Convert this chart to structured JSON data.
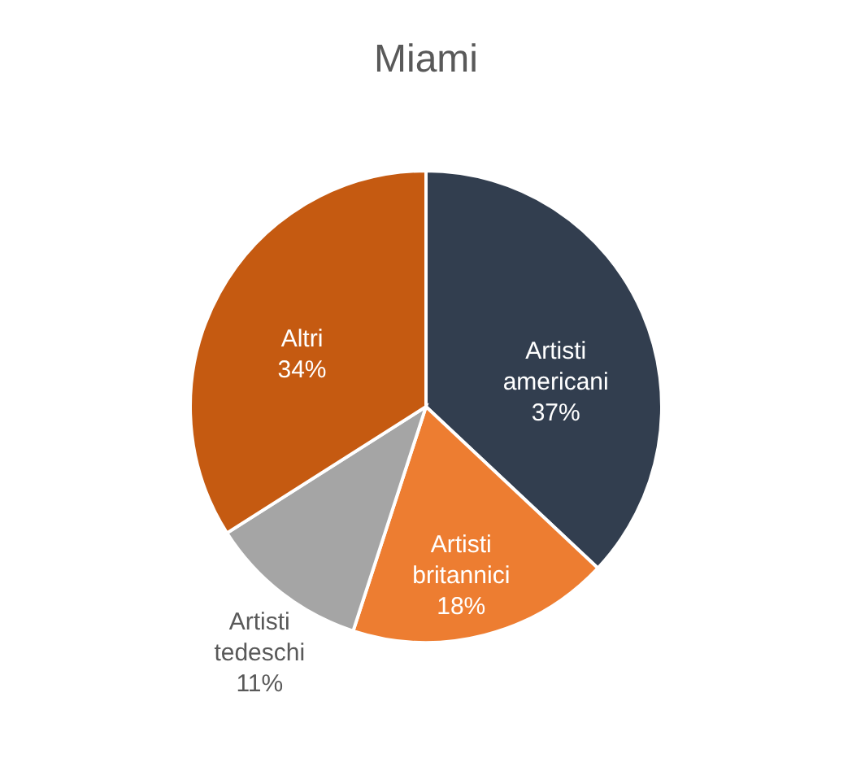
{
  "chart_data": {
    "type": "pie",
    "title": "Miami",
    "categories": [
      "Artisti americani",
      "Artisti britannici",
      "Artisti tedeschi",
      "Altri"
    ],
    "values": [
      37,
      18,
      11,
      34
    ],
    "value_labels": [
      "37%",
      "18%",
      "11%",
      "34%"
    ],
    "colors": [
      "#323e4f",
      "#ed7d31",
      "#a5a5a5",
      "#c55a11"
    ],
    "data_labels": true,
    "legend": false
  }
}
